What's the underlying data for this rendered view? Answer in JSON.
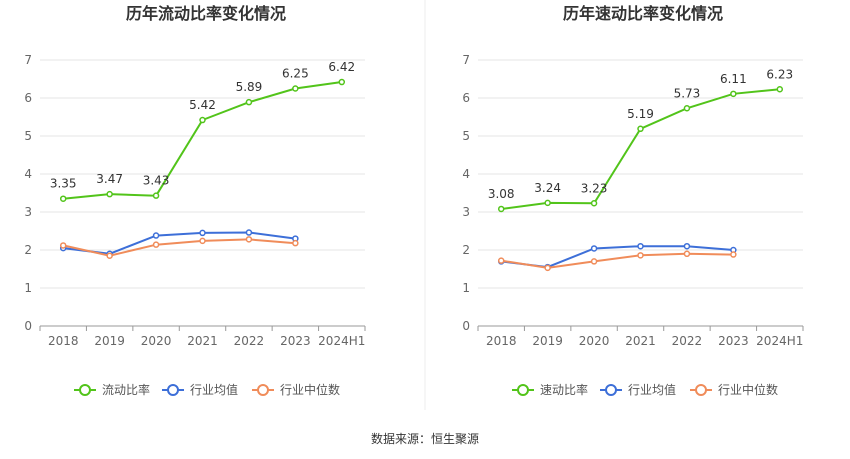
{
  "footer": {
    "source": "数据来源：恒生聚源"
  },
  "chart_data": [
    {
      "type": "line",
      "title": "历年流动比率变化情况",
      "categories": [
        "2018",
        "2019",
        "2020",
        "2021",
        "2022",
        "2023",
        "2024H1"
      ],
      "ylim": [
        0,
        7
      ],
      "yticks": [
        "0",
        "1",
        "2",
        "3",
        "4",
        "5",
        "6",
        "7"
      ],
      "series": [
        {
          "name": "流动比率",
          "color": "#52c41a",
          "values": [
            3.35,
            3.47,
            3.43,
            5.42,
            5.89,
            6.25,
            6.42
          ],
          "labels": [
            "3.35",
            "3.47",
            "3.43",
            "5.42",
            "5.89",
            "6.25",
            "6.42"
          ]
        },
        {
          "name": "行业均值",
          "color": "#3d6fd8",
          "values": [
            2.05,
            1.9,
            2.38,
            2.45,
            2.46,
            2.3,
            null
          ]
        },
        {
          "name": "行业中位数",
          "color": "#f08c5a",
          "values": [
            2.12,
            1.85,
            2.14,
            2.24,
            2.28,
            2.18,
            null
          ]
        }
      ]
    },
    {
      "type": "line",
      "title": "历年速动比率变化情况",
      "categories": [
        "2018",
        "2019",
        "2020",
        "2021",
        "2022",
        "2023",
        "2024H1"
      ],
      "ylim": [
        0,
        7
      ],
      "yticks": [
        "0",
        "1",
        "2",
        "3",
        "4",
        "5",
        "6",
        "7"
      ],
      "series": [
        {
          "name": "速动比率",
          "color": "#52c41a",
          "values": [
            3.08,
            3.24,
            3.23,
            5.19,
            5.73,
            6.11,
            6.23
          ],
          "labels": [
            "3.08",
            "3.24",
            "3.23",
            "5.19",
            "5.73",
            "6.11",
            "6.23"
          ]
        },
        {
          "name": "行业均值",
          "color": "#3d6fd8",
          "values": [
            1.7,
            1.55,
            2.04,
            2.1,
            2.1,
            2.0,
            null
          ]
        },
        {
          "name": "行业中位数",
          "color": "#f08c5a",
          "values": [
            1.72,
            1.53,
            1.7,
            1.86,
            1.9,
            1.88,
            null
          ]
        }
      ]
    }
  ]
}
